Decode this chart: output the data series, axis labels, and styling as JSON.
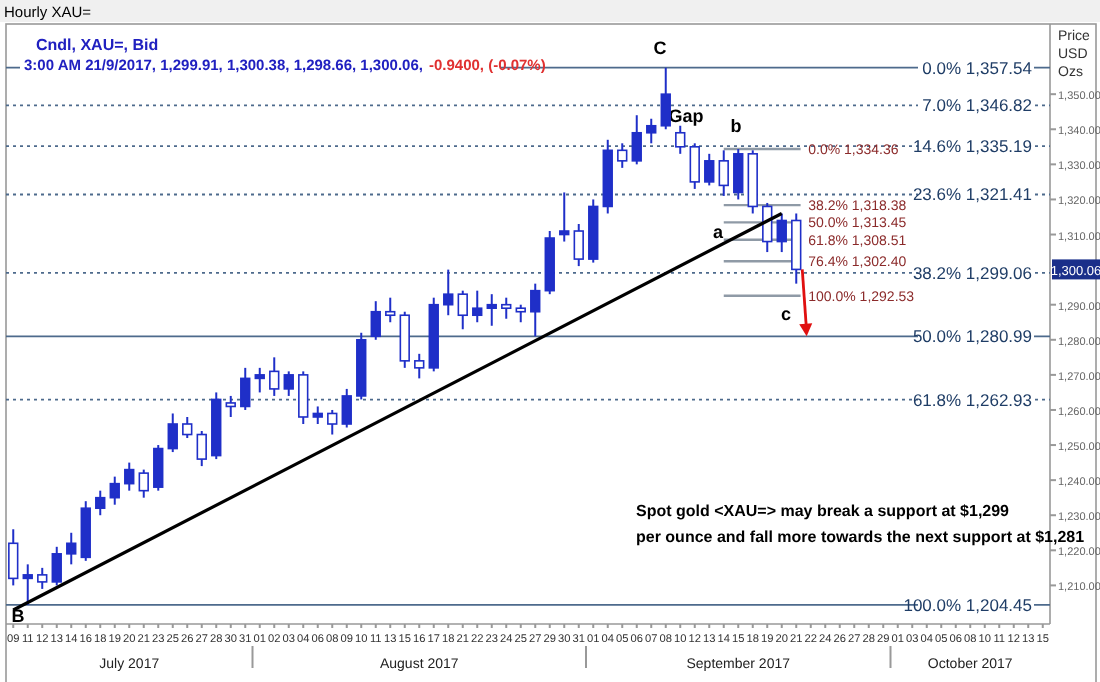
{
  "chart_data": {
    "type": "candlestick",
    "title": "Hourly XAU=",
    "subtitle": "Cndl, XAU=, Bid",
    "ylabel": "Price USD Ozs",
    "categories": [
      "09",
      "11",
      "12",
      "13",
      "14",
      "16",
      "18",
      "19",
      "20",
      "21",
      "23",
      "25",
      "26",
      "27",
      "28",
      "30",
      "31",
      "01",
      "02",
      "03",
      "04",
      "06",
      "08",
      "09",
      "10",
      "11",
      "13",
      "15",
      "16",
      "17",
      "18",
      "21",
      "22",
      "23",
      "24",
      "25",
      "27",
      "29",
      "30",
      "31",
      "01",
      "04",
      "05",
      "06",
      "07",
      "08",
      "10",
      "12",
      "13",
      "14",
      "15",
      "18",
      "19",
      "20",
      "21",
      "22",
      "24",
      "26",
      "27",
      "28",
      "29",
      "01",
      "03",
      "04",
      "05",
      "06",
      "08",
      "10",
      "11",
      "12",
      "13",
      "15"
    ],
    "ylim": [
      1199,
      1370
    ],
    "yticks": [
      {
        "value": 1210,
        "label": "1,210.00"
      },
      {
        "value": 1220,
        "label": "1,220.00"
      },
      {
        "value": 1230,
        "label": "1,230.00"
      },
      {
        "value": 1240,
        "label": "1,240.00"
      },
      {
        "value": 1250,
        "label": "1,250.00"
      },
      {
        "value": 1260,
        "label": "1,260.00"
      },
      {
        "value": 1270,
        "label": "1,270.00"
      },
      {
        "value": 1280,
        "label": "1,280.00"
      },
      {
        "value": 1290,
        "label": "1,290.00"
      },
      {
        "value": 1310,
        "label": "1,310.00"
      },
      {
        "value": 1320,
        "label": "1,320.00"
      },
      {
        "value": 1330,
        "label": "1,330.00"
      },
      {
        "value": 1340,
        "label": "1,340.00"
      },
      {
        "value": 1350,
        "label": "1,350.00"
      }
    ],
    "series": [
      {
        "color": "#1f2fc8",
        "ohlc": [
          [
            1222,
            1226,
            1210,
            1212
          ],
          [
            1212,
            1216,
            1204.45,
            1213
          ],
          [
            1213,
            1215,
            1209,
            1211
          ],
          [
            1211,
            1221,
            1210,
            1219
          ],
          [
            1219,
            1225,
            1216,
            1222
          ],
          [
            1218,
            1234,
            1217,
            1232
          ],
          [
            1232,
            1237,
            1230,
            1235
          ],
          [
            1235,
            1241,
            1233,
            1239
          ],
          [
            1239,
            1245,
            1237,
            1243
          ],
          [
            1242,
            1243,
            1235,
            1237
          ],
          [
            1238,
            1250,
            1237,
            1249
          ],
          [
            1249,
            1259,
            1248,
            1256
          ],
          [
            1256,
            1258,
            1252,
            1253
          ],
          [
            1253,
            1254,
            1244,
            1246
          ],
          [
            1247,
            1265,
            1246,
            1263
          ],
          [
            1262,
            1264,
            1258,
            1261
          ],
          [
            1261,
            1272,
            1260,
            1269
          ],
          [
            1269,
            1272,
            1265,
            1270
          ],
          [
            1271,
            1275,
            1264,
            1266
          ],
          [
            1266,
            1271,
            1264,
            1270
          ],
          [
            1270,
            1271,
            1256,
            1258
          ],
          [
            1258,
            1261,
            1256,
            1259
          ],
          [
            1259,
            1260,
            1253,
            1256
          ],
          [
            1256,
            1266,
            1255,
            1264
          ],
          [
            1264,
            1282,
            1263,
            1280
          ],
          [
            1281,
            1291,
            1280,
            1288
          ],
          [
            1288,
            1292,
            1285,
            1287
          ],
          [
            1287,
            1288,
            1272,
            1274
          ],
          [
            1274,
            1276,
            1269,
            1272
          ],
          [
            1272,
            1292,
            1271,
            1290
          ],
          [
            1290,
            1300,
            1287,
            1293
          ],
          [
            1293,
            1294,
            1283,
            1287
          ],
          [
            1287,
            1294,
            1285,
            1289
          ],
          [
            1289,
            1293,
            1284,
            1290
          ],
          [
            1290,
            1292,
            1286,
            1289
          ],
          [
            1289,
            1290,
            1285,
            1288
          ],
          [
            1288,
            1296,
            1281,
            1294
          ],
          [
            1294,
            1311,
            1293,
            1309
          ],
          [
            1310,
            1322,
            1308,
            1311
          ],
          [
            1311,
            1313,
            1301,
            1303
          ],
          [
            1303,
            1320,
            1302,
            1318
          ],
          [
            1318,
            1337,
            1316,
            1334
          ],
          [
            1334,
            1336,
            1329,
            1331
          ],
          [
            1331,
            1344,
            1330,
            1339
          ],
          [
            1339,
            1343,
            1336,
            1341
          ],
          [
            1341,
            1357.54,
            1340,
            1350
          ],
          [
            1339,
            1341,
            1333,
            1335
          ],
          [
            1335,
            1336,
            1323,
            1325
          ],
          [
            1325,
            1333,
            1324,
            1331
          ],
          [
            1331,
            1334,
            1321,
            1324
          ],
          [
            1322,
            1334.36,
            1320,
            1333
          ],
          [
            1333,
            1334,
            1316,
            1318
          ],
          [
            1318,
            1319,
            1305,
            1308
          ],
          [
            1308,
            1316,
            1305,
            1314
          ],
          [
            1314,
            1316,
            1296,
            1300.06
          ],
          null,
          null,
          null,
          null,
          null,
          null,
          null,
          null,
          null,
          null,
          null,
          null,
          null,
          null,
          null,
          null,
          null
        ]
      },
      {
        "type": "line",
        "color": "#000000",
        "values": [
          1203,
          null,
          null,
          null,
          null,
          null,
          null,
          null,
          null,
          null,
          null,
          null,
          null,
          null,
          null,
          null,
          null,
          null,
          null,
          null,
          null,
          null,
          null,
          null,
          null,
          null,
          null,
          null,
          null,
          null,
          null,
          null,
          null,
          null,
          null,
          null,
          null,
          null,
          null,
          null,
          null,
          null,
          null,
          null,
          null,
          null,
          null,
          null,
          null,
          null,
          null,
          null,
          null,
          1316,
          null,
          null,
          null,
          null,
          null,
          null,
          null,
          null,
          null,
          null,
          null,
          null,
          null,
          null,
          null,
          null,
          null,
          null
        ]
      }
    ],
    "ref_lines": [
      {
        "axis": "y",
        "value": 1357.54,
        "label": "0.0%  1,357.54",
        "color": "#4d6a8c",
        "line_style": "solid"
      },
      {
        "axis": "y",
        "value": 1346.82,
        "label": "7.0%  1,346.82",
        "color": "#4d6a8c",
        "line_style": "dotted"
      },
      {
        "axis": "y",
        "value": 1335.19,
        "label": "14.6%  1,335.19",
        "color": "#4d6a8c",
        "line_style": "dotted"
      },
      {
        "axis": "y",
        "value": 1321.41,
        "label": "23.6%  1,321.41",
        "color": "#4d6a8c",
        "line_style": "dotted"
      },
      {
        "axis": "y",
        "value": 1299.06,
        "label": "38.2%  1,299.06",
        "color": "#4d6a8c",
        "line_style": "dotted"
      },
      {
        "axis": "y",
        "value": 1280.99,
        "label": "50.0%  1,280.99",
        "color": "#4d6a8c",
        "line_style": "solid"
      },
      {
        "axis": "y",
        "value": 1262.93,
        "label": "61.8%  1,262.93",
        "color": "#4d6a8c",
        "line_style": "dotted"
      },
      {
        "axis": "y",
        "value": 1204.45,
        "label": "100.0%  1,204.45",
        "color": "#4d6a8c",
        "line_style": "solid"
      },
      {
        "axis": "y",
        "value": 1334.36,
        "label": "0.0% 1,334.36",
        "color": "#8f9aa6"
      },
      {
        "axis": "y",
        "value": 1318.38,
        "label": "38.2% 1,318.38",
        "color": "#8f9aa6"
      },
      {
        "axis": "y",
        "value": 1313.45,
        "label": "50.0% 1,313.45",
        "color": "#8f9aa6"
      },
      {
        "axis": "y",
        "value": 1308.51,
        "label": "61.8% 1,308.51",
        "color": "#8f9aa6"
      },
      {
        "axis": "y",
        "value": 1302.4,
        "label": "76.4% 1,302.40",
        "color": "#8f9aa6"
      },
      {
        "axis": "y",
        "value": 1292.53,
        "label": "100.0% 1,292.53",
        "color": "#8f9aa6"
      }
    ],
    "annotations": [
      "July 2017",
      "August 2017",
      "September 2017",
      "October 2017",
      "3:00 AM 21/9/2017, 1,299.91, 1,300.38, 1,298.66, 1,300.06,",
      "-0.9400, (-0.07%)",
      "Spot gold <XAU=> may break a support at $1,299\nper ounce and fall more towards the next support at $1,281",
      "B",
      "C",
      "Gap",
      "b",
      "a",
      "c",
      {
        "text": "1,300.06",
        "y": 1300.06
      }
    ]
  }
}
